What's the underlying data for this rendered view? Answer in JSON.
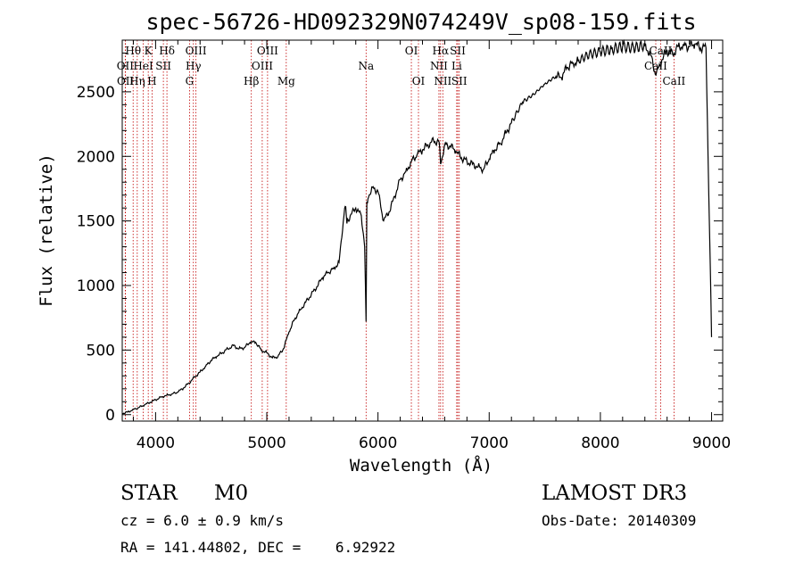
{
  "chart_data": {
    "type": "line",
    "title": "spec-56726-HD092329N074249V_sp08-159.fits",
    "xlabel": "Wavelength (Å)",
    "ylabel": "Flux (relative)",
    "xlim": [
      3700,
      9100
    ],
    "ylim": [
      -50,
      2900
    ],
    "xticks": [
      4000,
      5000,
      6000,
      7000,
      8000,
      9000
    ],
    "yticks": [
      0,
      500,
      1000,
      1500,
      2000,
      2500
    ],
    "grid": false,
    "spectrum": {
      "name": "flux",
      "x": [
        3700,
        3750,
        3800,
        3850,
        3900,
        3950,
        4000,
        4050,
        4100,
        4150,
        4200,
        4250,
        4300,
        4350,
        4400,
        4450,
        4500,
        4550,
        4600,
        4650,
        4700,
        4750,
        4800,
        4850,
        4900,
        4950,
        5000,
        5050,
        5100,
        5150,
        5200,
        5250,
        5300,
        5350,
        5400,
        5450,
        5500,
        5550,
        5600,
        5650,
        5700,
        5710,
        5720,
        5750,
        5800,
        5850,
        5880,
        5893,
        5900,
        5910,
        5950,
        6000,
        6050,
        6100,
        6150,
        6200,
        6250,
        6300,
        6350,
        6400,
        6450,
        6500,
        6550,
        6563,
        6600,
        6650,
        6700,
        6750,
        6800,
        6850,
        6900,
        6950,
        7000,
        7050,
        7100,
        7150,
        7200,
        7300,
        7400,
        7500,
        7600,
        7650,
        7700,
        7750,
        7800,
        7900,
        8000,
        8100,
        8200,
        8300,
        8400,
        8450,
        8500,
        8550,
        8600,
        8650,
        8700,
        8750,
        8800,
        8850,
        8900,
        8950,
        9000
      ],
      "y": [
        10,
        20,
        40,
        55,
        75,
        95,
        115,
        135,
        150,
        160,
        175,
        205,
        245,
        290,
        330,
        375,
        420,
        450,
        480,
        510,
        535,
        510,
        520,
        560,
        560,
        500,
        480,
        440,
        450,
        510,
        640,
        740,
        810,
        870,
        930,
        990,
        1060,
        1100,
        1130,
        1180,
        1600,
        1610,
        1480,
        1540,
        1600,
        1540,
        1300,
        720,
        1650,
        1670,
        1760,
        1730,
        1500,
        1570,
        1690,
        1820,
        1880,
        1960,
        2010,
        2050,
        2090,
        2120,
        2110,
        1940,
        2090,
        2080,
        2040,
        1990,
        1960,
        1940,
        1920,
        1900,
        1980,
        2050,
        2100,
        2180,
        2260,
        2420,
        2480,
        2560,
        2620,
        2610,
        2690,
        2720,
        2740,
        2790,
        2810,
        2830,
        2850,
        2840,
        2860,
        2790,
        2630,
        2740,
        2820,
        2790,
        2850,
        2860,
        2850,
        2870,
        2840,
        2840,
        600
      ]
    },
    "spectral_lines": [
      {
        "label": "Hθ",
        "wavelength": 3798,
        "row": 0
      },
      {
        "label": "OII",
        "wavelength": 3727,
        "row": 1
      },
      {
        "label": "OII",
        "wavelength": 3729,
        "row": 2
      },
      {
        "label": "K",
        "wavelength": 3934,
        "row": 0
      },
      {
        "label": "HeI",
        "wavelength": 3889,
        "row": 1
      },
      {
        "label": "Hη",
        "wavelength": 3835,
        "row": 2
      },
      {
        "label": "Hδ",
        "wavelength": 4102,
        "row": 0
      },
      {
        "label": "SII",
        "wavelength": 4070,
        "row": 1
      },
      {
        "label": "H",
        "wavelength": 3968,
        "row": 2
      },
      {
        "label": "OIII",
        "wavelength": 4363,
        "row": 0
      },
      {
        "label": "Hγ",
        "wavelength": 4340,
        "row": 1
      },
      {
        "label": "G",
        "wavelength": 4305,
        "row": 2
      },
      {
        "label": "OIII",
        "wavelength": 5007,
        "row": 0
      },
      {
        "label": "OIII",
        "wavelength": 4959,
        "row": 1
      },
      {
        "label": "Hβ",
        "wavelength": 4861,
        "row": 2
      },
      {
        "label": "Mg",
        "wavelength": 5175,
        "row": 2
      },
      {
        "label": "Na",
        "wavelength": 5893,
        "row": 1
      },
      {
        "label": "OI",
        "wavelength": 6300,
        "row": 0
      },
      {
        "label": "OI",
        "wavelength": 6364,
        "row": 2
      },
      {
        "label": "Hα",
        "wavelength": 6563,
        "row": 0
      },
      {
        "label": "NII",
        "wavelength": 6548,
        "row": 1
      },
      {
        "label": "NII",
        "wavelength": 6583,
        "row": 2
      },
      {
        "label": "SII",
        "wavelength": 6717,
        "row": 0
      },
      {
        "label": "Li",
        "wavelength": 6708,
        "row": 1
      },
      {
        "label": "SII",
        "wavelength": 6731,
        "row": 2
      },
      {
        "label": "CaII",
        "wavelength": 8542,
        "row": 0
      },
      {
        "label": "CaII",
        "wavelength": 8498,
        "row": 1
      },
      {
        "label": "CaII",
        "wavelength": 8662,
        "row": 2
      }
    ]
  },
  "info": {
    "class_label": "STAR",
    "subclass": "M0",
    "survey": "LAMOST DR3",
    "cz": "cz = 6.0 ± 0.9 km/s",
    "obs_date": "Obs-Date: 20140309",
    "coords": "RA = 141.44802, DEC =    6.92922"
  },
  "colors": {
    "line_marker": "#c00000",
    "spectrum": "#000000"
  }
}
